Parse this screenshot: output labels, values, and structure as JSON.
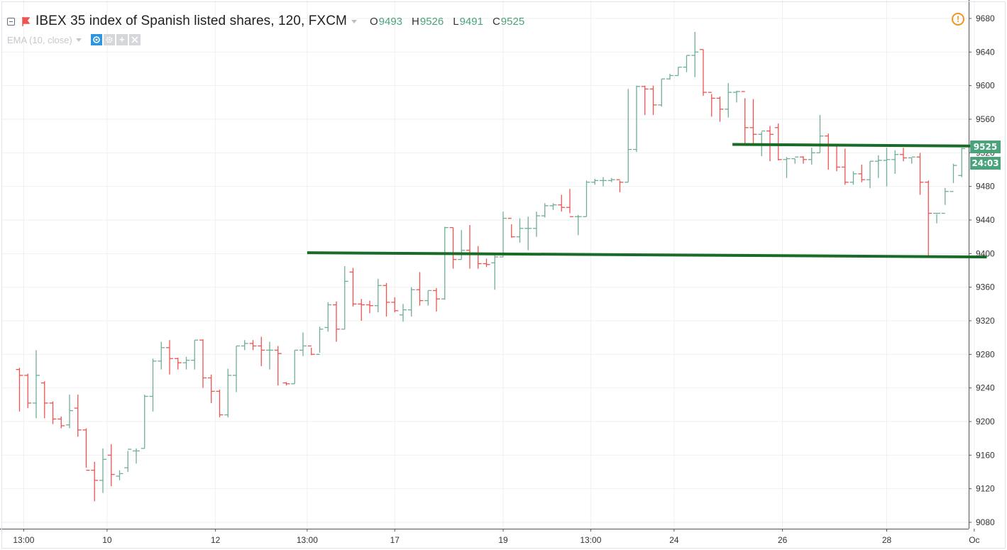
{
  "header": {
    "title": "IBEX 35 index of Spanish listed shares, 120, FXCM",
    "ohlc": [
      {
        "label": "O",
        "value": "9493"
      },
      {
        "label": "H",
        "value": "9526"
      },
      {
        "label": "L",
        "value": "9491"
      },
      {
        "label": "C",
        "value": "9525"
      }
    ]
  },
  "indicator": {
    "label": "EMA (10, close)"
  },
  "price_tag": {
    "price": "9525",
    "countdown": "24:03"
  },
  "colors": {
    "up": "#6fae97",
    "down": "#ef5350",
    "trendline": "#1a6b27",
    "grid": "#eef0f2",
    "axis": "#50535e",
    "tag": "#4aa37a",
    "alert": "#f7931e"
  },
  "icons": [
    "collapse-icon",
    "flag-icon",
    "dropdown-caret-icon",
    "eye-icon",
    "settings-icon",
    "plus-icon",
    "close-icon",
    "alert-icon"
  ],
  "chart_data": {
    "type": "ohlc",
    "y_range": [
      9080,
      9680
    ],
    "y_ticks": [
      "9680",
      "9640",
      "9600",
      "9560",
      "9520",
      "9480",
      "9440",
      "9400",
      "9360",
      "9320",
      "9280",
      "9240",
      "9200",
      "9160",
      "9120",
      "9080"
    ],
    "x_ticks": [
      "13:00",
      "10",
      "12",
      "13:00",
      "17",
      "19",
      "13:00",
      "24",
      "26",
      "28",
      "Oc"
    ],
    "x_tick_positions": [
      0.5,
      10.5,
      23.5,
      34.5,
      45,
      58,
      68.5,
      78.5,
      91.5,
      104,
      114.5
    ],
    "bars": [
      [
        9262,
        9264,
        9212,
        9255
      ],
      [
        9255,
        9257,
        9216,
        9222
      ],
      [
        9222,
        9285,
        9204,
        9255
      ],
      [
        9246,
        9248,
        9204,
        9222
      ],
      [
        9222,
        9224,
        9197,
        9203
      ],
      [
        9203,
        9206,
        9192,
        9195
      ],
      [
        9196,
        9232,
        9192,
        9213
      ],
      [
        9216,
        9232,
        9182,
        9190
      ],
      [
        9190,
        9192,
        9145,
        9142
      ],
      [
        9142,
        9152,
        9105,
        9130
      ],
      [
        9130,
        9168,
        9115,
        9155
      ],
      [
        9160,
        9173,
        9123,
        9137
      ],
      [
        9135,
        9142,
        9130,
        9138
      ],
      [
        9145,
        9165,
        9140,
        9167
      ],
      [
        9165,
        9168,
        9150,
        9165
      ],
      [
        9168,
        9232,
        9168,
        9230
      ],
      [
        9230,
        9275,
        9212,
        9272
      ],
      [
        9272,
        9295,
        9262,
        9288
      ],
      [
        9288,
        9297,
        9256,
        9275
      ],
      [
        9275,
        9276,
        9262,
        9270
      ],
      [
        9270,
        9277,
        9262,
        9273
      ],
      [
        9273,
        9297,
        9262,
        9297
      ],
      [
        9297,
        9298,
        9240,
        9252
      ],
      [
        9252,
        9256,
        9222,
        9236
      ],
      [
        9236,
        9238,
        9205,
        9208
      ],
      [
        9208,
        9263,
        9205,
        9255
      ],
      [
        9255,
        9290,
        9235,
        9290
      ],
      [
        9290,
        9297,
        9285,
        9293
      ],
      [
        9293,
        9297,
        9285,
        9290
      ],
      [
        9290,
        9301,
        9266,
        9285
      ],
      [
        9285,
        9295,
        9262,
        9285
      ],
      [
        9285,
        9290,
        9243,
        9281
      ],
      [
        9246,
        9247,
        9243,
        9245
      ],
      [
        9245,
        9285,
        9245,
        9285
      ],
      [
        9285,
        9306,
        9278,
        9290
      ],
      [
        9290,
        9288,
        9279,
        9280
      ],
      [
        9280,
        9313,
        9282,
        9310
      ],
      [
        9312,
        9342,
        9307,
        9339
      ],
      [
        9339,
        9343,
        9295,
        9310
      ],
      [
        9310,
        9385,
        9310,
        9367
      ],
      [
        9378,
        9383,
        9337,
        9340
      ],
      [
        9340,
        9346,
        9320,
        9339
      ],
      [
        9339,
        9344,
        9329,
        9338
      ],
      [
        9338,
        9370,
        9330,
        9362
      ],
      [
        9362,
        9365,
        9325,
        9342
      ],
      [
        9342,
        9348,
        9330,
        9332
      ],
      [
        9327,
        9340,
        9319,
        9333
      ],
      [
        9333,
        9360,
        9325,
        9357
      ],
      [
        9357,
        9378,
        9338,
        9344
      ],
      [
        9344,
        9356,
        9338,
        9356
      ],
      [
        9356,
        9359,
        9331,
        9346
      ],
      [
        9346,
        9432,
        9345,
        9431
      ],
      [
        9431,
        9431,
        9382,
        9393
      ],
      [
        9393,
        9428,
        9393,
        9404
      ],
      [
        9404,
        9434,
        9382,
        9400
      ],
      [
        9400,
        9409,
        9382,
        9388
      ],
      [
        9388,
        9394,
        9384,
        9387
      ],
      [
        9389,
        9400,
        9357,
        9396
      ],
      [
        9396,
        9450,
        9396,
        9442
      ],
      [
        9442,
        9435,
        9419,
        9420
      ],
      [
        9420,
        9442,
        9413,
        9430
      ],
      [
        9430,
        9444,
        9404,
        9430
      ],
      [
        9430,
        9450,
        9420,
        9445
      ],
      [
        9445,
        9460,
        9443,
        9457
      ],
      [
        9457,
        9460,
        9452,
        9458
      ],
      [
        9458,
        9470,
        9450,
        9455
      ],
      [
        9455,
        9477,
        9448,
        9444
      ],
      [
        9444,
        9446,
        9422,
        9444
      ],
      [
        9444,
        9487,
        9444,
        9485
      ],
      [
        9485,
        9489,
        9482,
        9487
      ],
      [
        9487,
        9491,
        9480,
        9487
      ],
      [
        9487,
        9490,
        9485,
        9488
      ],
      [
        9488,
        9487,
        9473,
        9485
      ],
      [
        9485,
        9596,
        9485,
        9524
      ],
      [
        9524,
        9600,
        9521,
        9599
      ],
      [
        9599,
        9600,
        9565,
        9596
      ],
      [
        9596,
        9600,
        9565,
        9577
      ],
      [
        9577,
        9608,
        9575,
        9608
      ],
      [
        9608,
        9614,
        9607,
        9612
      ],
      [
        9612,
        9622,
        9612,
        9622
      ],
      [
        9622,
        9636,
        9616,
        9636
      ],
      [
        9636,
        9664,
        9610,
        9640
      ],
      [
        9643,
        9643,
        9588,
        9592
      ],
      [
        9592,
        9590,
        9563,
        9585
      ],
      [
        9585,
        9587,
        9557,
        9572
      ],
      [
        9572,
        9603,
        9562,
        9592
      ],
      [
        9592,
        9594,
        9580,
        9593
      ],
      [
        9593,
        9585,
        9530,
        9550
      ],
      [
        9550,
        9584,
        9530,
        9542
      ],
      [
        9542,
        9545,
        9516,
        9546
      ],
      [
        9546,
        9552,
        9510,
        9542
      ],
      [
        9550,
        9555,
        9511,
        9512
      ],
      [
        9512,
        9515,
        9490,
        9513
      ],
      [
        9513,
        9513,
        9507,
        9515
      ],
      [
        9515,
        9516,
        9507,
        9512
      ],
      [
        9512,
        9526,
        9506,
        9520
      ],
      [
        9520,
        9565,
        9520,
        9540
      ],
      [
        9540,
        9543,
        9500,
        9530
      ],
      [
        9530,
        9528,
        9498,
        9503
      ],
      [
        9503,
        9525,
        9482,
        9485
      ],
      [
        9485,
        9498,
        9482,
        9495
      ],
      [
        9495,
        9506,
        9485,
        9488
      ],
      [
        9488,
        9510,
        9478,
        9510
      ],
      [
        9510,
        9517,
        9490,
        9511
      ],
      [
        9511,
        9526,
        9480,
        9512
      ],
      [
        9512,
        9523,
        9495,
        9518
      ],
      [
        9518,
        9526,
        9510,
        9514
      ],
      [
        9514,
        9514,
        9507,
        9515
      ],
      [
        9515,
        9520,
        9470,
        9485
      ],
      [
        9485,
        9487,
        9398,
        9448
      ],
      [
        9448,
        9447,
        9436,
        9448
      ],
      [
        9448,
        9478,
        9458,
        9474
      ],
      [
        9474,
        9507,
        9484,
        9505
      ],
      [
        9493,
        9526,
        9491,
        9525
      ]
    ],
    "trendlines": [
      {
        "x1": 34.5,
        "y1": 9401,
        "x2": 116,
        "y2": 9396
      },
      {
        "x1": 85.5,
        "y1": 9530,
        "x2": 116,
        "y2": 9528
      }
    ],
    "last_price": 9525
  }
}
